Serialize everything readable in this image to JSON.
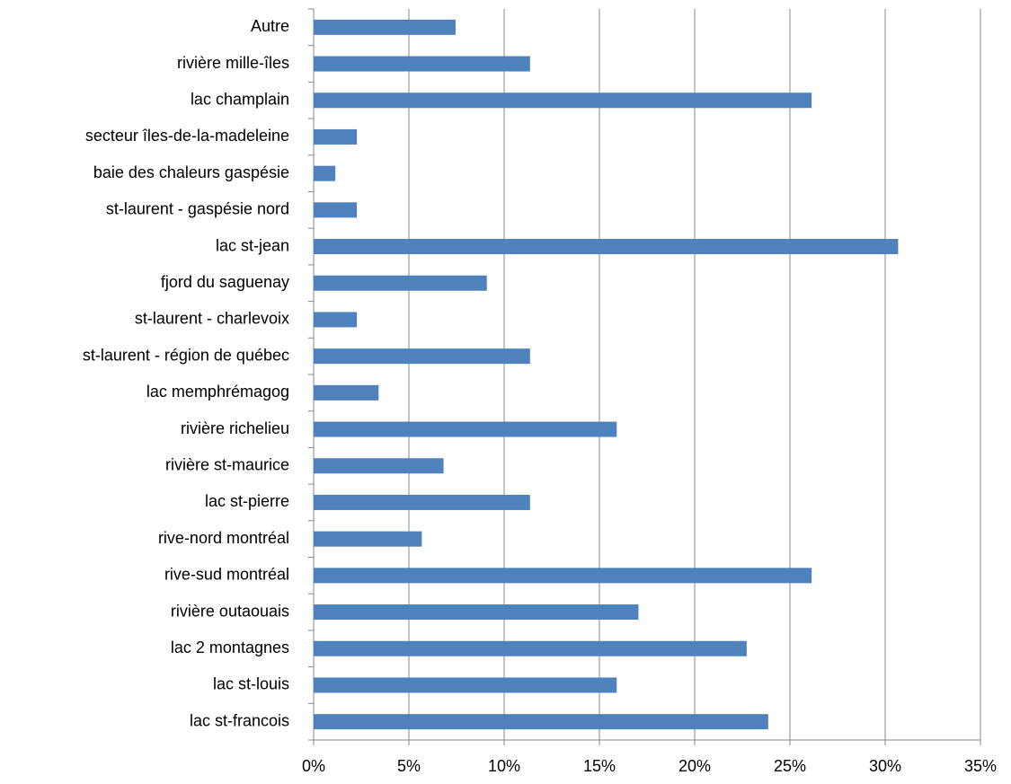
{
  "chart_data": {
    "type": "bar",
    "orientation": "horizontal",
    "categories": [
      "Autre",
      "rivière mille-îles",
      "lac champlain",
      "secteur îles-de-la-madeleine",
      "baie des chaleurs gaspésie",
      "st-laurent - gaspésie nord",
      "lac st-jean",
      "fjord du saguenay",
      "st-laurent - charlevoix",
      "st-laurent - région de québec",
      "lac memphrémagog",
      "rivière richelieu",
      "rivière st-maurice",
      "lac st-pierre",
      "rive-nord montréal",
      "rive-sud montréal",
      "rivière outaouais",
      "lac 2 montagnes",
      "lac st-louis",
      "lac st-francois"
    ],
    "values": [
      7.45,
      11.36,
      26.14,
      2.27,
      1.14,
      2.27,
      30.68,
      9.09,
      2.27,
      11.36,
      3.41,
      15.91,
      6.82,
      11.36,
      5.68,
      26.14,
      17.05,
      22.73,
      15.91,
      23.86
    ],
    "color": "#4f81bd",
    "xlim": [
      0,
      35
    ],
    "xticks": [
      {
        "value": 0,
        "label": "0%"
      },
      {
        "value": 5,
        "label": "5%"
      },
      {
        "value": 10,
        "label": "10%"
      },
      {
        "value": 15,
        "label": "15%"
      },
      {
        "value": 20,
        "label": "20%"
      },
      {
        "value": 25,
        "label": "25%"
      },
      {
        "value": 30,
        "label": "30%"
      },
      {
        "value": 35,
        "label": "35%"
      }
    ],
    "grid": true
  }
}
